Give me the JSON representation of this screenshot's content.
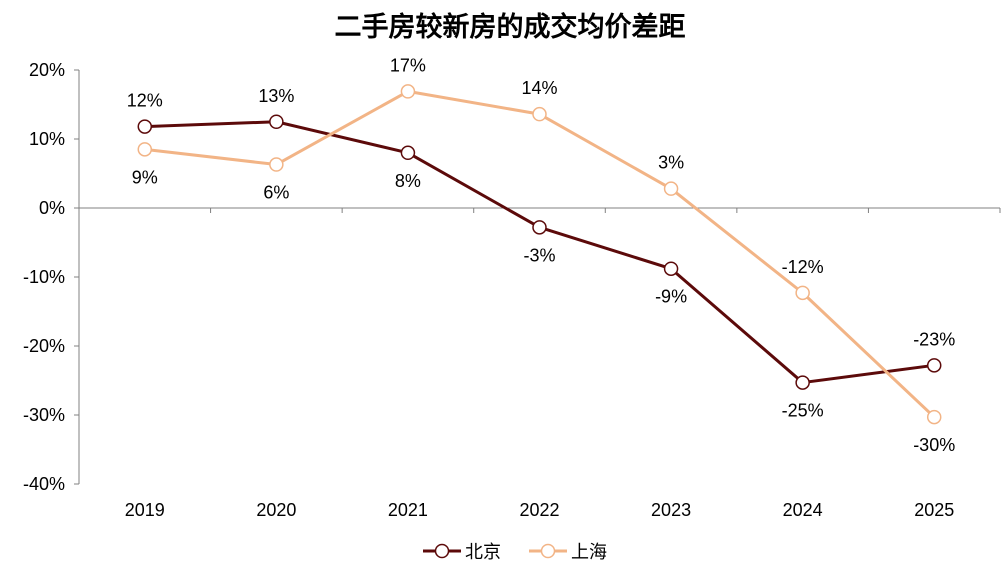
{
  "chart_data": {
    "type": "line",
    "title": "二手房较新房的成交均价差距",
    "categories": [
      "2019",
      "2020",
      "2021",
      "2022",
      "2023",
      "2024",
      "2025"
    ],
    "yticks": [
      "20%",
      "10%",
      "0%",
      "-10%",
      "-20%",
      "-30%",
      "-40%"
    ],
    "ylim": [
      -40,
      20
    ],
    "grid": false,
    "legend_position": "bottom-center",
    "series": [
      {
        "name": "北京",
        "color": "#5c0a0a",
        "values": [
          11.8,
          12.5,
          8.0,
          -2.8,
          -8.8,
          -25.3,
          -22.8
        ],
        "labels": [
          "12%",
          "13%",
          "8%",
          "-3%",
          "-9%",
          "-25%",
          "-23%"
        ],
        "label_pos": [
          "above",
          "above",
          "below",
          "below",
          "below",
          "below",
          "above"
        ]
      },
      {
        "name": "上海",
        "color": "#f2b486",
        "values": [
          8.5,
          6.3,
          16.9,
          13.6,
          2.8,
          -12.3,
          -30.3
        ],
        "labels": [
          "9%",
          "6%",
          "17%",
          "14%",
          "3%",
          "-12%",
          "-30%"
        ],
        "label_pos": [
          "below",
          "below",
          "above",
          "above",
          "above",
          "above",
          "below"
        ]
      }
    ]
  }
}
